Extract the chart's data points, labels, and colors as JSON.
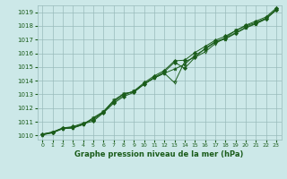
{
  "background_color": "#cce8e8",
  "grid_color": "#99bbbb",
  "line_color": "#1a5c1a",
  "title": "Graphe pression niveau de la mer (hPa)",
  "xlim": [
    -0.5,
    23.5
  ],
  "ylim": [
    1009.7,
    1019.5
  ],
  "xticks": [
    0,
    1,
    2,
    3,
    4,
    5,
    6,
    7,
    8,
    9,
    10,
    11,
    12,
    13,
    14,
    15,
    16,
    17,
    18,
    19,
    20,
    21,
    22,
    23
  ],
  "yticks": [
    1010,
    1011,
    1012,
    1013,
    1014,
    1015,
    1016,
    1017,
    1018,
    1019
  ],
  "s1_y": [
    1010.1,
    1010.25,
    1010.55,
    1010.6,
    1010.85,
    1011.05,
    1011.65,
    1012.35,
    1012.85,
    1013.15,
    1013.75,
    1014.25,
    1014.65,
    1015.35,
    1014.9,
    1015.7,
    1016.35,
    1016.85,
    1017.1,
    1017.5,
    1017.9,
    1018.2,
    1018.55,
    1019.2
  ],
  "s2_y": [
    1010.1,
    1010.25,
    1010.55,
    1010.65,
    1010.9,
    1011.15,
    1011.7,
    1012.45,
    1012.95,
    1013.25,
    1013.85,
    1014.35,
    1014.75,
    1015.45,
    1015.5,
    1016.05,
    1016.5,
    1016.95,
    1017.25,
    1017.65,
    1018.05,
    1018.35,
    1018.65,
    1019.3
  ],
  "s3_y": [
    1010.05,
    1010.2,
    1010.5,
    1010.55,
    1010.8,
    1011.25,
    1011.7,
    1012.55,
    1013.05,
    1013.2,
    1013.75,
    1014.2,
    1014.55,
    1014.85,
    1015.2,
    1015.85,
    1016.3,
    1016.8,
    1017.05,
    1017.45,
    1017.85,
    1018.15,
    1018.5,
    1019.15
  ],
  "s4_y": [
    1010.05,
    1010.2,
    1010.5,
    1010.55,
    1010.8,
    1011.3,
    1011.75,
    1012.55,
    1013.05,
    1013.2,
    1013.75,
    1014.2,
    1014.55,
    1013.85,
    1015.4,
    1015.7,
    1016.1,
    1016.7,
    1017.15,
    1017.65,
    1018.0,
    1018.25,
    1018.55,
    1019.2
  ]
}
